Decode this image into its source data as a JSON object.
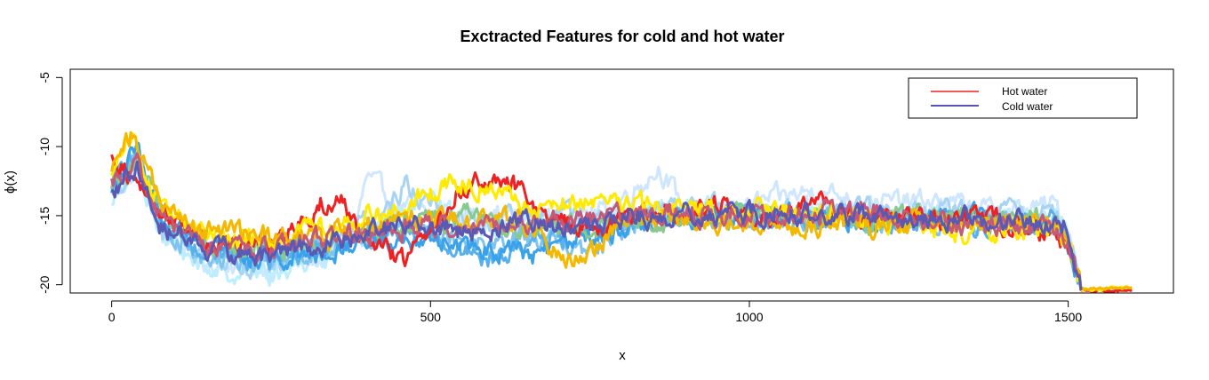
{
  "chart_data": {
    "type": "line",
    "title": "Exctracted Features for cold and hot water",
    "xlabel": "x",
    "ylabel": "ϕ(x)",
    "xlim": [
      -65,
      1665
    ],
    "ylim": [
      -20.6,
      -4.4
    ],
    "xticks": [
      0,
      500,
      1000,
      1500
    ],
    "yticks": [
      -20,
      -15,
      -10,
      -5
    ],
    "grid": false,
    "legend": {
      "placement": "top-right",
      "entries": [
        {
          "label": "Hot water",
          "color": "#ee2222"
        },
        {
          "label": "Cold water",
          "color": "#1a1aa0"
        }
      ]
    },
    "series": [
      {
        "group": "cold",
        "color": "#cfe6ff",
        "points": [
          [
            0,
            -13.2
          ],
          [
            40,
            -12.0
          ],
          [
            80,
            -16.5
          ],
          [
            150,
            -18.4
          ],
          [
            250,
            -18.8
          ],
          [
            330,
            -18.2
          ],
          [
            380,
            -16.5
          ],
          [
            400,
            -12.2
          ],
          [
            440,
            -14.0
          ],
          [
            520,
            -15.2
          ],
          [
            600,
            -14.8
          ],
          [
            680,
            -15.5
          ],
          [
            780,
            -14.5
          ],
          [
            860,
            -11.5
          ],
          [
            900,
            -14.8
          ],
          [
            1000,
            -14.2
          ],
          [
            1100,
            -13.2
          ],
          [
            1200,
            -14.0
          ],
          [
            1300,
            -14.0
          ],
          [
            1400,
            -14.8
          ],
          [
            1480,
            -14.2
          ],
          [
            1505,
            -16.5
          ],
          [
            1520,
            -20.3
          ]
        ]
      },
      {
        "group": "cold",
        "color": "#bdeeff",
        "points": [
          [
            0,
            -14.6
          ],
          [
            40,
            -11.0
          ],
          [
            80,
            -16.8
          ],
          [
            150,
            -18.8
          ],
          [
            250,
            -19.2
          ],
          [
            330,
            -17.8
          ],
          [
            420,
            -15.8
          ],
          [
            500,
            -13.8
          ],
          [
            580,
            -16.2
          ],
          [
            660,
            -15.0
          ],
          [
            740,
            -16.0
          ],
          [
            820,
            -14.8
          ],
          [
            900,
            -14.4
          ],
          [
            1000,
            -14.8
          ],
          [
            1100,
            -14.5
          ],
          [
            1200,
            -15.1
          ],
          [
            1300,
            -15.2
          ],
          [
            1400,
            -15.0
          ],
          [
            1480,
            -14.8
          ],
          [
            1505,
            -17.0
          ],
          [
            1520,
            -20.4
          ]
        ]
      },
      {
        "group": "cold",
        "color": "#a8d4f4",
        "points": [
          [
            0,
            -13.8
          ],
          [
            40,
            -10.8
          ],
          [
            80,
            -16.2
          ],
          [
            150,
            -18.0
          ],
          [
            250,
            -18.6
          ],
          [
            330,
            -17.0
          ],
          [
            420,
            -15.0
          ],
          [
            460,
            -12.8
          ],
          [
            520,
            -14.8
          ],
          [
            600,
            -15.8
          ],
          [
            680,
            -14.6
          ],
          [
            760,
            -15.4
          ],
          [
            840,
            -15.0
          ],
          [
            900,
            -14.0
          ],
          [
            1000,
            -14.9
          ],
          [
            1100,
            -14.4
          ],
          [
            1200,
            -14.6
          ],
          [
            1300,
            -14.8
          ],
          [
            1400,
            -14.9
          ],
          [
            1480,
            -14.5
          ],
          [
            1505,
            -17.2
          ],
          [
            1520,
            -20.4
          ]
        ]
      },
      {
        "group": "cold",
        "color": "#7fc4ee",
        "points": [
          [
            0,
            -13.4
          ],
          [
            40,
            -10.6
          ],
          [
            80,
            -16.0
          ],
          [
            150,
            -18.0
          ],
          [
            250,
            -18.4
          ],
          [
            330,
            -17.2
          ],
          [
            420,
            -16.2
          ],
          [
            500,
            -15.5
          ],
          [
            580,
            -17.0
          ],
          [
            660,
            -16.5
          ],
          [
            740,
            -17.8
          ],
          [
            820,
            -15.5
          ],
          [
            900,
            -15.0
          ],
          [
            1000,
            -15.2
          ],
          [
            1100,
            -15.0
          ],
          [
            1200,
            -15.5
          ],
          [
            1300,
            -15.3
          ],
          [
            1400,
            -15.6
          ],
          [
            1480,
            -15.5
          ],
          [
            1505,
            -17.6
          ],
          [
            1520,
            -20.4
          ]
        ]
      },
      {
        "group": "cold",
        "color": "#58b0ec",
        "points": [
          [
            0,
            -13.0
          ],
          [
            40,
            -10.2
          ],
          [
            80,
            -16.0
          ],
          [
            150,
            -17.6
          ],
          [
            250,
            -18.2
          ],
          [
            330,
            -17.4
          ],
          [
            420,
            -15.8
          ],
          [
            500,
            -16.4
          ],
          [
            580,
            -18.6
          ],
          [
            660,
            -16.8
          ],
          [
            740,
            -16.2
          ],
          [
            820,
            -15.2
          ],
          [
            900,
            -14.9
          ],
          [
            1000,
            -15.0
          ],
          [
            1100,
            -15.3
          ],
          [
            1200,
            -15.2
          ],
          [
            1300,
            -15.6
          ],
          [
            1400,
            -15.5
          ],
          [
            1480,
            -15.3
          ],
          [
            1505,
            -17.8
          ],
          [
            1520,
            -20.4
          ]
        ]
      },
      {
        "group": "cold",
        "color": "#3aa2ea",
        "points": [
          [
            0,
            -12.8
          ],
          [
            40,
            -10.4
          ],
          [
            80,
            -15.8
          ],
          [
            150,
            -17.4
          ],
          [
            250,
            -18.0
          ],
          [
            330,
            -17.6
          ],
          [
            420,
            -16.8
          ],
          [
            500,
            -16.6
          ],
          [
            580,
            -17.4
          ],
          [
            660,
            -17.8
          ],
          [
            740,
            -16.6
          ],
          [
            820,
            -15.4
          ],
          [
            900,
            -15.4
          ],
          [
            1000,
            -14.8
          ],
          [
            1100,
            -15.0
          ],
          [
            1200,
            -15.4
          ],
          [
            1300,
            -15.0
          ],
          [
            1400,
            -15.4
          ],
          [
            1480,
            -15.6
          ],
          [
            1505,
            -18.0
          ],
          [
            1520,
            -20.4
          ]
        ]
      },
      {
        "group": "cold",
        "color": "#88c98e",
        "points": [
          [
            0,
            -12.6
          ],
          [
            40,
            -11.0
          ],
          [
            80,
            -15.5
          ],
          [
            150,
            -17.0
          ],
          [
            250,
            -17.8
          ],
          [
            330,
            -16.8
          ],
          [
            420,
            -15.6
          ],
          [
            480,
            -15.4
          ],
          [
            560,
            -15.0
          ],
          [
            640,
            -16.0
          ],
          [
            720,
            -15.8
          ],
          [
            800,
            -15.6
          ],
          [
            880,
            -15.2
          ],
          [
            960,
            -15.0
          ],
          [
            1040,
            -15.0
          ],
          [
            1120,
            -15.2
          ],
          [
            1200,
            -15.4
          ],
          [
            1280,
            -15.0
          ],
          [
            1360,
            -15.4
          ],
          [
            1440,
            -15.3
          ],
          [
            1490,
            -15.5
          ],
          [
            1505,
            -17.6
          ],
          [
            1520,
            -20.4
          ]
        ]
      },
      {
        "group": "hot",
        "color": "#ee2222",
        "points": [
          [
            0,
            -10.2
          ],
          [
            40,
            -12.8
          ],
          [
            80,
            -14.6
          ],
          [
            150,
            -17.0
          ],
          [
            200,
            -17.2
          ],
          [
            260,
            -16.8
          ],
          [
            330,
            -14.0
          ],
          [
            360,
            -13.8
          ],
          [
            400,
            -17.2
          ],
          [
            460,
            -18.2
          ],
          [
            500,
            -15.8
          ],
          [
            540,
            -13.6
          ],
          [
            580,
            -12.4
          ],
          [
            630,
            -12.8
          ],
          [
            660,
            -14.2
          ],
          [
            700,
            -15.6
          ],
          [
            760,
            -15.8
          ],
          [
            820,
            -15.0
          ],
          [
            880,
            -14.6
          ],
          [
            960,
            -14.4
          ],
          [
            1040,
            -15.2
          ],
          [
            1100,
            -14.2
          ],
          [
            1180,
            -15.0
          ],
          [
            1260,
            -15.4
          ],
          [
            1340,
            -15.2
          ],
          [
            1420,
            -15.8
          ],
          [
            1480,
            -16.2
          ],
          [
            1505,
            -17.8
          ],
          [
            1520,
            -20.4
          ],
          [
            1600,
            -20.4
          ]
        ]
      },
      {
        "group": "hot",
        "color": "#ffea00",
        "points": [
          [
            0,
            -11.8
          ],
          [
            30,
            -8.8
          ],
          [
            50,
            -11.4
          ],
          [
            80,
            -14.6
          ],
          [
            150,
            -16.4
          ],
          [
            250,
            -16.8
          ],
          [
            320,
            -15.8
          ],
          [
            380,
            -15.2
          ],
          [
            420,
            -15.0
          ],
          [
            480,
            -13.8
          ],
          [
            540,
            -12.6
          ],
          [
            600,
            -12.8
          ],
          [
            660,
            -14.4
          ],
          [
            720,
            -14.2
          ],
          [
            800,
            -14.0
          ],
          [
            860,
            -14.4
          ],
          [
            940,
            -14.6
          ],
          [
            1000,
            -14.4
          ],
          [
            1080,
            -14.8
          ],
          [
            1160,
            -15.0
          ],
          [
            1240,
            -15.6
          ],
          [
            1320,
            -16.2
          ],
          [
            1400,
            -16.2
          ],
          [
            1480,
            -16.0
          ],
          [
            1505,
            -17.6
          ],
          [
            1520,
            -20.4
          ],
          [
            1600,
            -20.2
          ]
        ]
      },
      {
        "group": "hot",
        "color": "#f5b800",
        "points": [
          [
            0,
            -11.6
          ],
          [
            30,
            -9.2
          ],
          [
            50,
            -11.0
          ],
          [
            80,
            -14.4
          ],
          [
            150,
            -16.2
          ],
          [
            250,
            -16.6
          ],
          [
            320,
            -16.4
          ],
          [
            400,
            -16.0
          ],
          [
            480,
            -15.2
          ],
          [
            560,
            -15.6
          ],
          [
            640,
            -15.4
          ],
          [
            700,
            -17.6
          ],
          [
            740,
            -18.4
          ],
          [
            800,
            -15.2
          ],
          [
            860,
            -15.0
          ],
          [
            920,
            -15.4
          ],
          [
            1000,
            -15.2
          ],
          [
            1060,
            -16.2
          ],
          [
            1120,
            -15.6
          ],
          [
            1200,
            -15.8
          ],
          [
            1280,
            -15.6
          ],
          [
            1360,
            -15.4
          ],
          [
            1440,
            -15.8
          ],
          [
            1490,
            -15.6
          ],
          [
            1505,
            -17.8
          ],
          [
            1520,
            -20.3
          ],
          [
            1600,
            -20.2
          ]
        ]
      },
      {
        "group": "hot",
        "color": "#c45a78",
        "points": [
          [
            0,
            -12.2
          ],
          [
            40,
            -11.6
          ],
          [
            80,
            -15.6
          ],
          [
            150,
            -17.2
          ],
          [
            250,
            -17.6
          ],
          [
            330,
            -16.6
          ],
          [
            420,
            -16.2
          ],
          [
            500,
            -15.6
          ],
          [
            560,
            -15.8
          ],
          [
            620,
            -15.4
          ],
          [
            700,
            -15.6
          ],
          [
            780,
            -15.2
          ],
          [
            860,
            -14.8
          ],
          [
            940,
            -14.9
          ],
          [
            1000,
            -15.1
          ],
          [
            1080,
            -14.8
          ],
          [
            1160,
            -14.6
          ],
          [
            1240,
            -15.2
          ],
          [
            1320,
            -15.5
          ],
          [
            1400,
            -15.7
          ],
          [
            1480,
            -15.8
          ],
          [
            1505,
            -17.8
          ],
          [
            1520,
            -20.4
          ]
        ]
      },
      {
        "group": "cold",
        "color": "#5a5ab4",
        "points": [
          [
            0,
            -13.1
          ],
          [
            40,
            -11.4
          ],
          [
            80,
            -15.9
          ],
          [
            150,
            -17.4
          ],
          [
            250,
            -18.0
          ],
          [
            330,
            -17.0
          ],
          [
            420,
            -16.0
          ],
          [
            500,
            -15.8
          ],
          [
            580,
            -16.2
          ],
          [
            660,
            -15.6
          ],
          [
            740,
            -15.8
          ],
          [
            820,
            -15.0
          ],
          [
            900,
            -14.8
          ],
          [
            980,
            -14.8
          ],
          [
            1060,
            -14.7
          ],
          [
            1140,
            -14.9
          ],
          [
            1220,
            -15.2
          ],
          [
            1300,
            -15.1
          ],
          [
            1380,
            -15.4
          ],
          [
            1460,
            -15.5
          ],
          [
            1495,
            -15.6
          ],
          [
            1505,
            -17.6
          ],
          [
            1520,
            -20.4
          ]
        ]
      }
    ]
  }
}
